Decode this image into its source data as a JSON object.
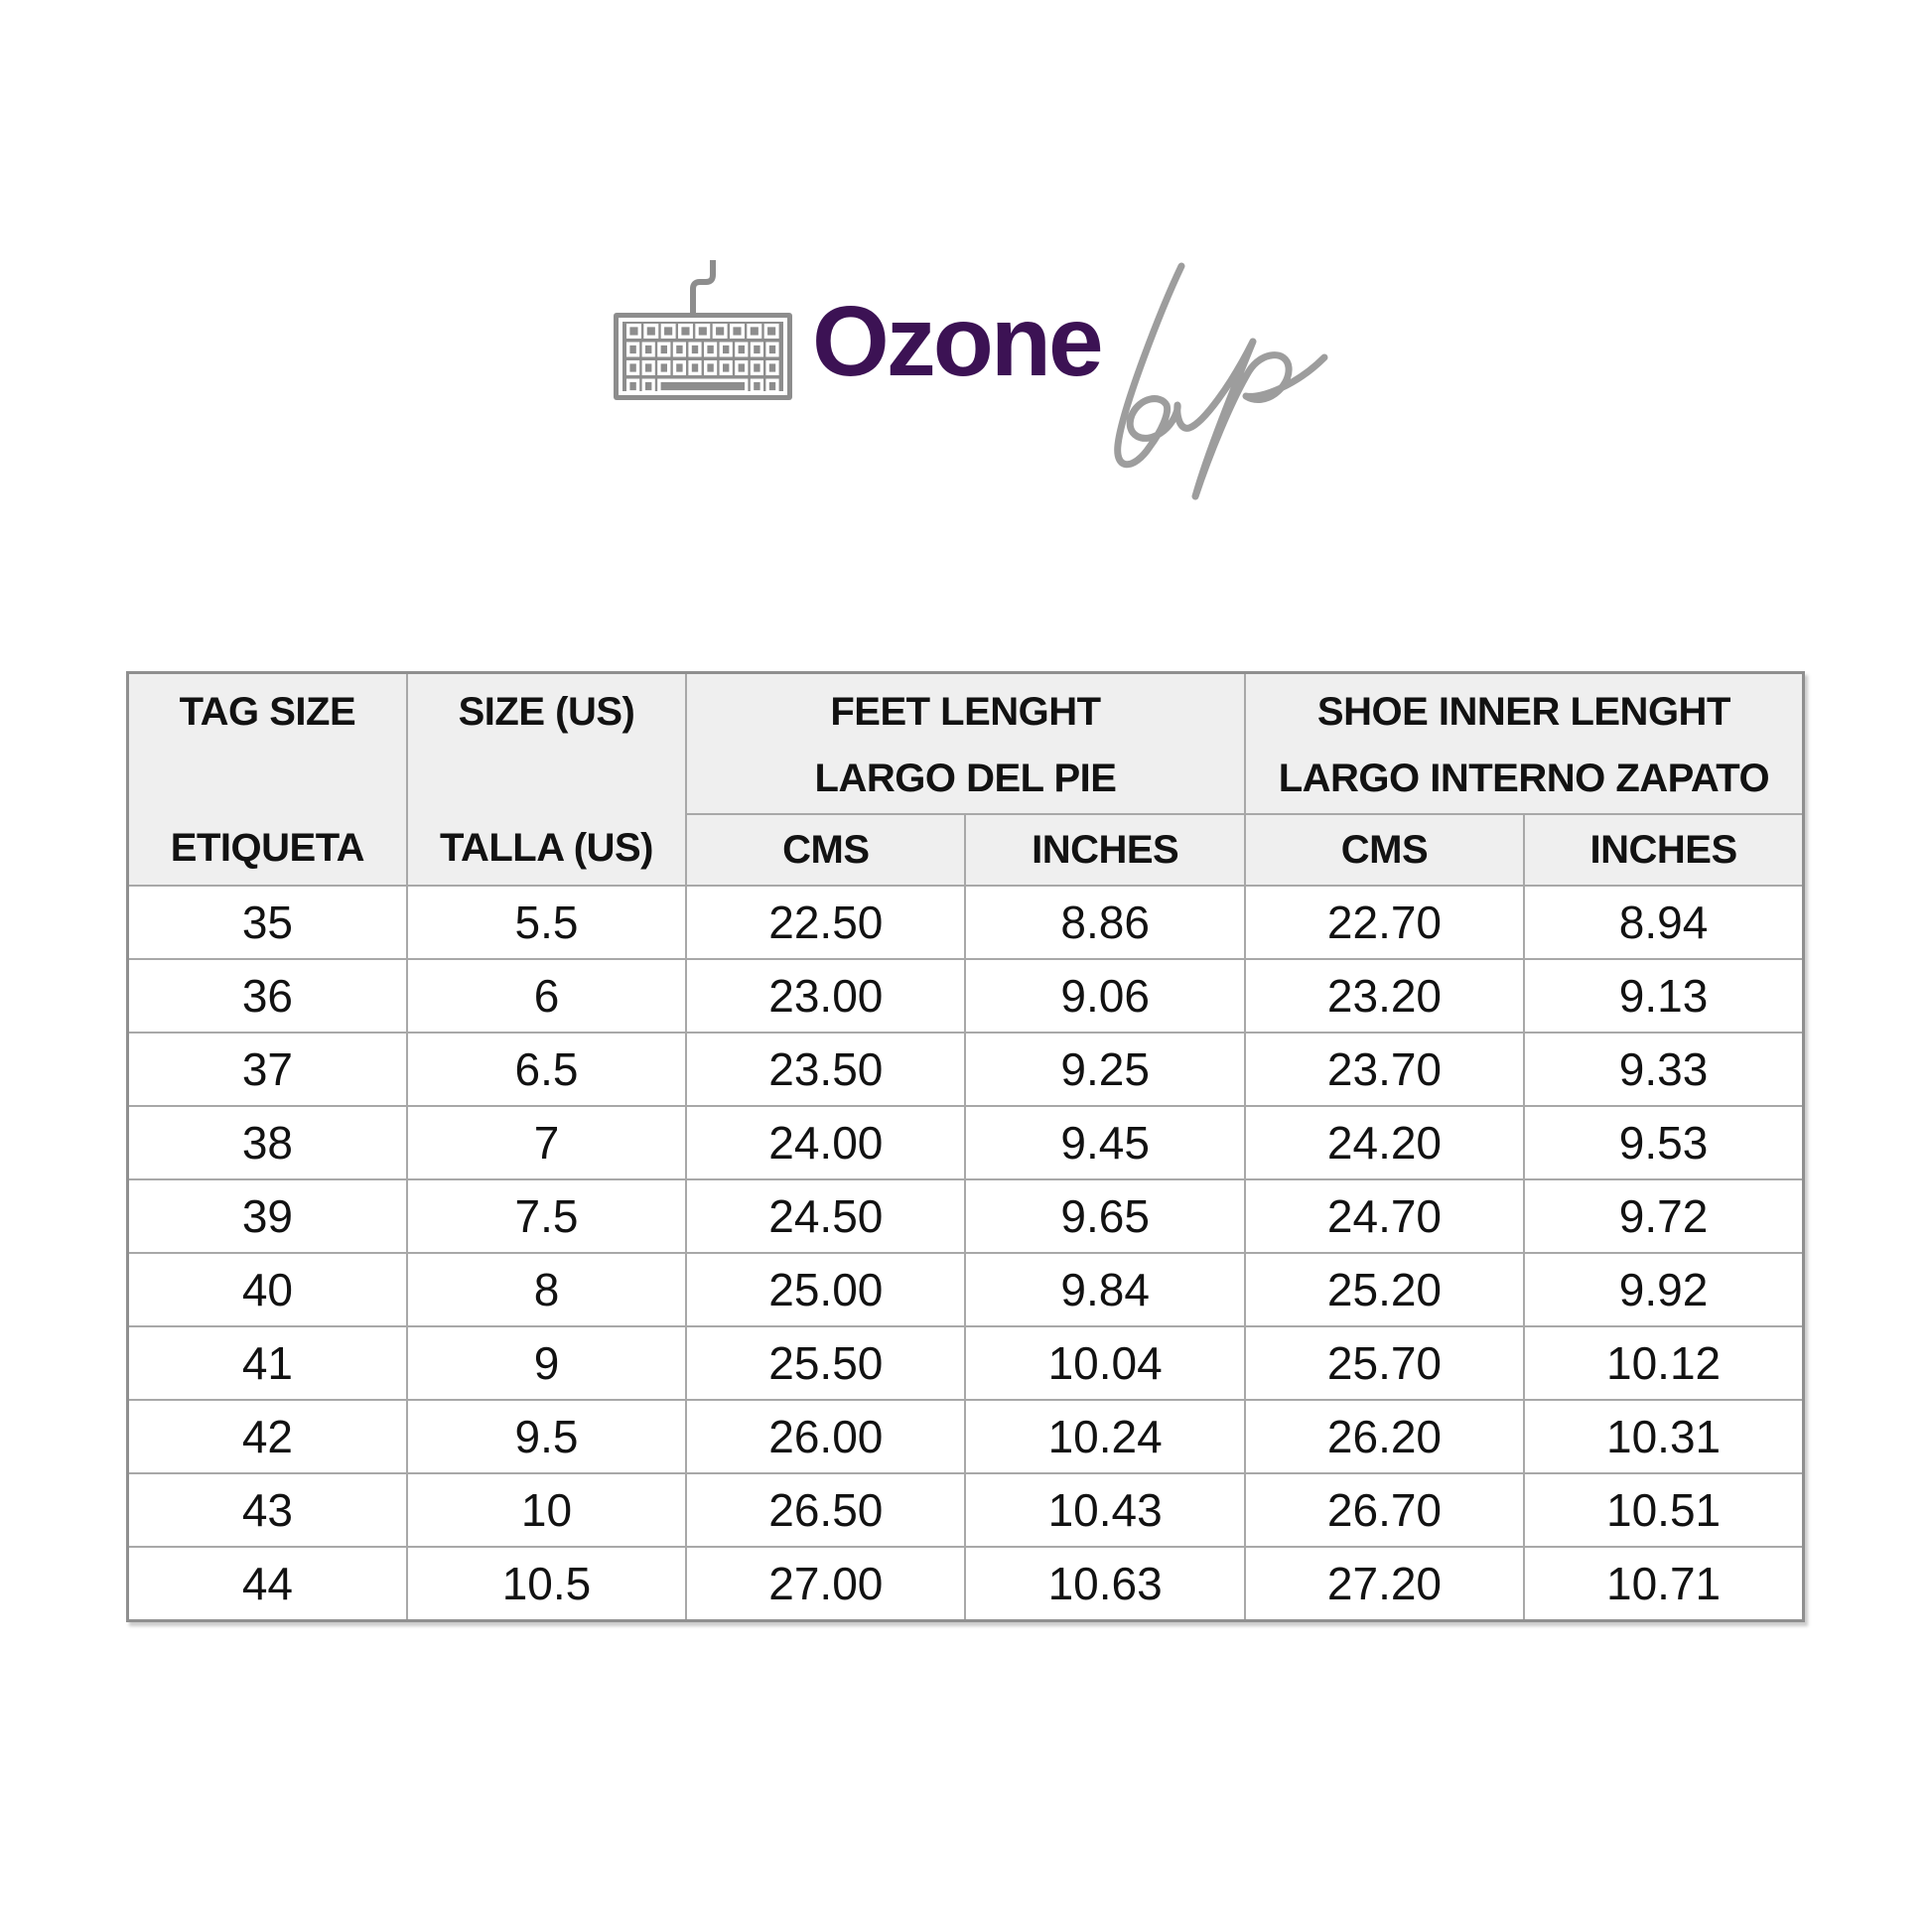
{
  "logo": {
    "brand_bold": "Ozone",
    "brand_script": "Lap",
    "icon": "keyboard",
    "brand_color": "#3c1254",
    "keyboard_gray": "#8d8d8d",
    "script_gray": "#9d9d9d"
  },
  "table": {
    "header_bg": "#efefef",
    "border_color": "#a8a8a8",
    "header": {
      "col1_top": "TAG SIZE",
      "col1_bottom": "ETIQUETA",
      "col2_top": "SIZE (US)",
      "col2_bottom": "TALLA (US)",
      "group1_line1": "FEET LENGHT",
      "group1_line2": "LARGO DEL PIE",
      "group2_line1": "SHOE INNER LENGHT",
      "group2_line2": "LARGO INTERNO ZAPATO",
      "sub": [
        "CMS",
        "INCHES",
        "CMS",
        "INCHES"
      ]
    },
    "rows": [
      [
        "35",
        "5.5",
        "22.50",
        "8.86",
        "22.70",
        "8.94"
      ],
      [
        "36",
        "6",
        "23.00",
        "9.06",
        "23.20",
        "9.13"
      ],
      [
        "37",
        "6.5",
        "23.50",
        "9.25",
        "23.70",
        "9.33"
      ],
      [
        "38",
        "7",
        "24.00",
        "9.45",
        "24.20",
        "9.53"
      ],
      [
        "39",
        "7.5",
        "24.50",
        "9.65",
        "24.70",
        "9.72"
      ],
      [
        "40",
        "8",
        "25.00",
        "9.84",
        "25.20",
        "9.92"
      ],
      [
        "41",
        "9",
        "25.50",
        "10.04",
        "25.70",
        "10.12"
      ],
      [
        "42",
        "9.5",
        "26.00",
        "10.24",
        "26.20",
        "10.31"
      ],
      [
        "43",
        "10",
        "26.50",
        "10.43",
        "26.70",
        "10.51"
      ],
      [
        "44",
        "10.5",
        "27.00",
        "10.63",
        "27.20",
        "10.71"
      ]
    ]
  }
}
